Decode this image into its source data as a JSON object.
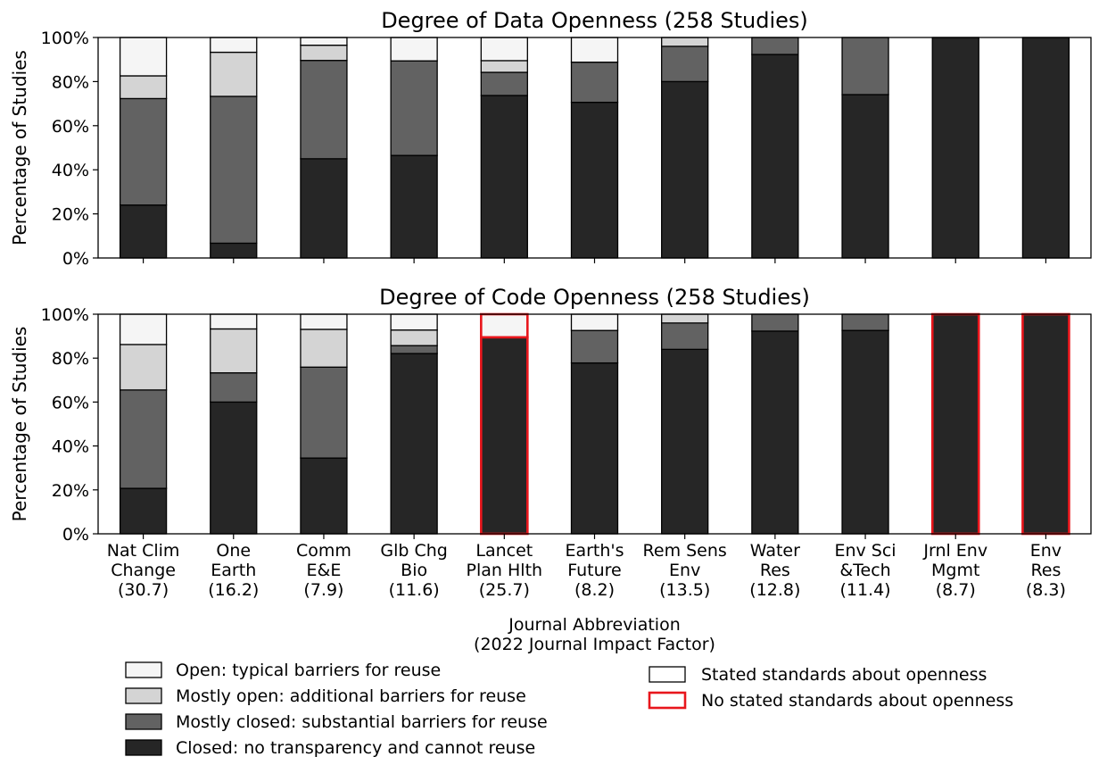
{
  "chart_data": [
    {
      "type": "bar",
      "stacked": true,
      "title": "Degree of Data Openness (258 Studies)",
      "ylabel": "Percentage of Studies",
      "ylim": [
        0,
        100
      ],
      "yticks": [
        "0%",
        "20%",
        "40%",
        "60%",
        "80%",
        "100%"
      ],
      "categories": [
        "Nat Clim Change",
        "One Earth",
        "Comm E&E",
        "Glb Chg Bio",
        "Lancet Plan Hlth",
        "Earth's Future",
        "Rem Sens Env",
        "Water Res",
        "Env Sci &Tech",
        "Jrnl Env Mgmt",
        "Env Res"
      ],
      "series": [
        {
          "name": "Closed: no transparency and cannot reuse",
          "values": [
            24,
            6.7,
            45,
            46.5,
            73.7,
            70.6,
            80,
            92.3,
            74.1,
            100,
            100
          ]
        },
        {
          "name": "Mostly closed: substantial barriers for reuse",
          "values": [
            48.3,
            66.6,
            44.6,
            42.9,
            10.5,
            18.2,
            16,
            7.7,
            25.9,
            0,
            0
          ]
        },
        {
          "name": "Mostly open: additional barriers for reuse",
          "values": [
            10.3,
            20,
            6.9,
            0,
            5.3,
            0,
            4,
            0,
            0,
            0,
            0
          ]
        },
        {
          "name": "Open: typical barriers for reuse",
          "values": [
            17.4,
            6.7,
            3.5,
            10.6,
            10.5,
            11.2,
            0,
            0,
            0,
            0,
            0
          ]
        }
      ],
      "no_stated_standards": [
        false,
        false,
        false,
        false,
        false,
        false,
        false,
        false,
        false,
        false,
        false
      ]
    },
    {
      "type": "bar",
      "stacked": true,
      "title": "Degree of Code Openness (258 Studies)",
      "ylabel": "Percentage of Studies",
      "xlabel": "Journal Abbreviation",
      "xlabel2": "(2022 Journal Impact Factor)",
      "ylim": [
        0,
        100
      ],
      "yticks": [
        "0%",
        "20%",
        "40%",
        "60%",
        "80%",
        "100%"
      ],
      "categories": [
        "Nat Clim Change",
        "One Earth",
        "Comm E&E",
        "Glb Chg Bio",
        "Lancet Plan Hlth",
        "Earth's Future",
        "Rem Sens Env",
        "Water Res",
        "Env Sci &Tech",
        "Jrnl Env Mgmt",
        "Env Res"
      ],
      "tick_labels": [
        [
          "Nat Clim",
          "Change",
          "(30.7)"
        ],
        [
          "One",
          "Earth",
          "(16.2)"
        ],
        [
          "Comm",
          "E&E",
          "(7.9)"
        ],
        [
          "Glb Chg",
          "Bio",
          "(11.6)"
        ],
        [
          "Lancet",
          "Plan Hlth",
          "(25.7)"
        ],
        [
          "Earth's",
          "Future",
          "(8.2)"
        ],
        [
          "Rem Sens",
          "Env",
          "(13.5)"
        ],
        [
          "Water",
          "Res",
          "(12.8)"
        ],
        [
          "Env Sci",
          "&Tech",
          "(11.4)"
        ],
        [
          "Jrnl Env",
          "Mgmt",
          "(8.7)"
        ],
        [
          "Env",
          "Res",
          "(8.3)"
        ]
      ],
      "series": [
        {
          "name": "Closed: no transparency and cannot reuse",
          "values": [
            20.7,
            60,
            34.5,
            82.1,
            89.5,
            77.8,
            84,
            92.3,
            92.6,
            100,
            100
          ]
        },
        {
          "name": "Mostly closed: substantial barriers for reuse",
          "values": [
            44.8,
            13.3,
            41.4,
            3.6,
            0,
            14.8,
            12,
            7.7,
            7.4,
            0,
            0
          ]
        },
        {
          "name": "Mostly open: additional barriers for reuse",
          "values": [
            20.7,
            20,
            17.2,
            7.1,
            0,
            0,
            4,
            0,
            0,
            0,
            0
          ]
        },
        {
          "name": "Open: typical barriers for reuse",
          "values": [
            13.8,
            6.7,
            6.9,
            7.2,
            10.5,
            7.4,
            0,
            0,
            0,
            0,
            0
          ]
        }
      ],
      "no_stated_standards": [
        false,
        false,
        false,
        false,
        true,
        false,
        false,
        false,
        false,
        true,
        true
      ]
    }
  ],
  "legend": {
    "openness": [
      {
        "label": "Open: typical barriers for reuse",
        "color": "#f5f5f5"
      },
      {
        "label": "Mostly open: additional barriers for reuse",
        "color": "#d4d4d4"
      },
      {
        "label": "Mostly closed: substantial barriers for reuse",
        "color": "#626262"
      },
      {
        "label": "Closed: no transparency and cannot reuse",
        "color": "#262626"
      }
    ],
    "standards": [
      {
        "label": "Stated standards about openness",
        "edge": "#000000"
      },
      {
        "label": "No stated standards about openness",
        "edge": "#e8161c"
      }
    ]
  },
  "colors": {
    "closed": "#262626",
    "mostly_closed": "#626262",
    "mostly_open": "#d4d4d4",
    "open": "#f5f5f5",
    "no_standard_edge": "#e8161c"
  }
}
